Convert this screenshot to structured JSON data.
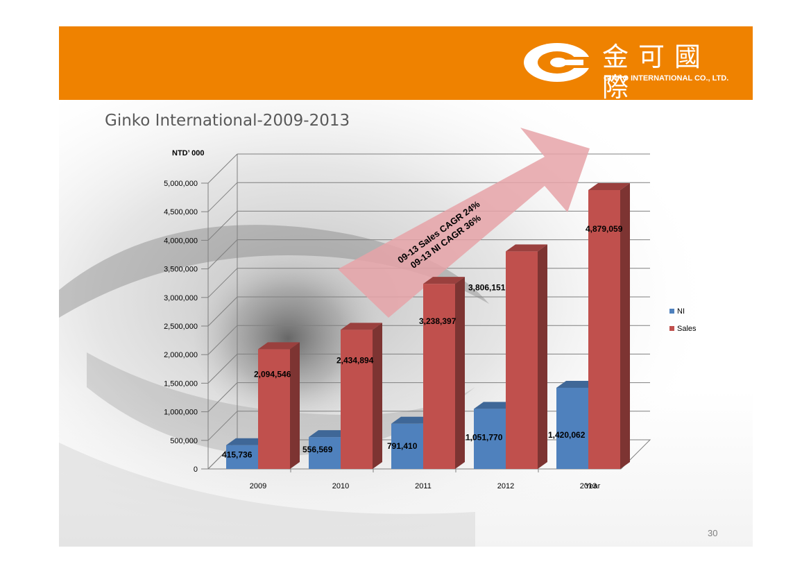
{
  "header": {
    "brand_color": "#ef8200",
    "logo_icon": "ginko-logo-icon",
    "logo_chinese": "金可國際",
    "logo_english": "GINKO INTERNATIONAL CO., LTD."
  },
  "slide": {
    "title": "Ginko International-2009-2013",
    "page_number": "30"
  },
  "chart_data": {
    "type": "bar",
    "title": "",
    "unit_label": "NTD’ 000",
    "xlabel": "Year",
    "ylabel": "",
    "ylim": [
      0,
      5000000
    ],
    "yticks": [
      "0",
      "500,000",
      "1,000,000",
      "1,500,000",
      "2,000,000",
      "2,500,000",
      "3,000,000",
      "3,500,000",
      "4,000,000",
      "4,500,000",
      "5,000,000"
    ],
    "categories": [
      "2009",
      "2010",
      "2011",
      "2012",
      "2013"
    ],
    "series": [
      {
        "name": "NI",
        "color": "#4f81bd",
        "values": [
          415736,
          556569,
          791410,
          1051770,
          1420062
        ],
        "labels": [
          "415,736",
          "556,569",
          "791,410",
          "1,051,770",
          "1,420,062"
        ]
      },
      {
        "name": "Sales",
        "color": "#c0504d",
        "values": [
          2094546,
          2434894,
          3238397,
          3806151,
          4879059
        ],
        "labels": [
          "2,094,546",
          "2,434,894",
          "3,238,397",
          "3,806,151",
          "4,879,059"
        ]
      }
    ],
    "grid": true,
    "legend": "right",
    "annotation": {
      "lines": [
        "09-13 Sales CAGR 24%",
        "09-13 NI CAGR 36%"
      ],
      "arrow_color": "#e6a3a8"
    }
  }
}
